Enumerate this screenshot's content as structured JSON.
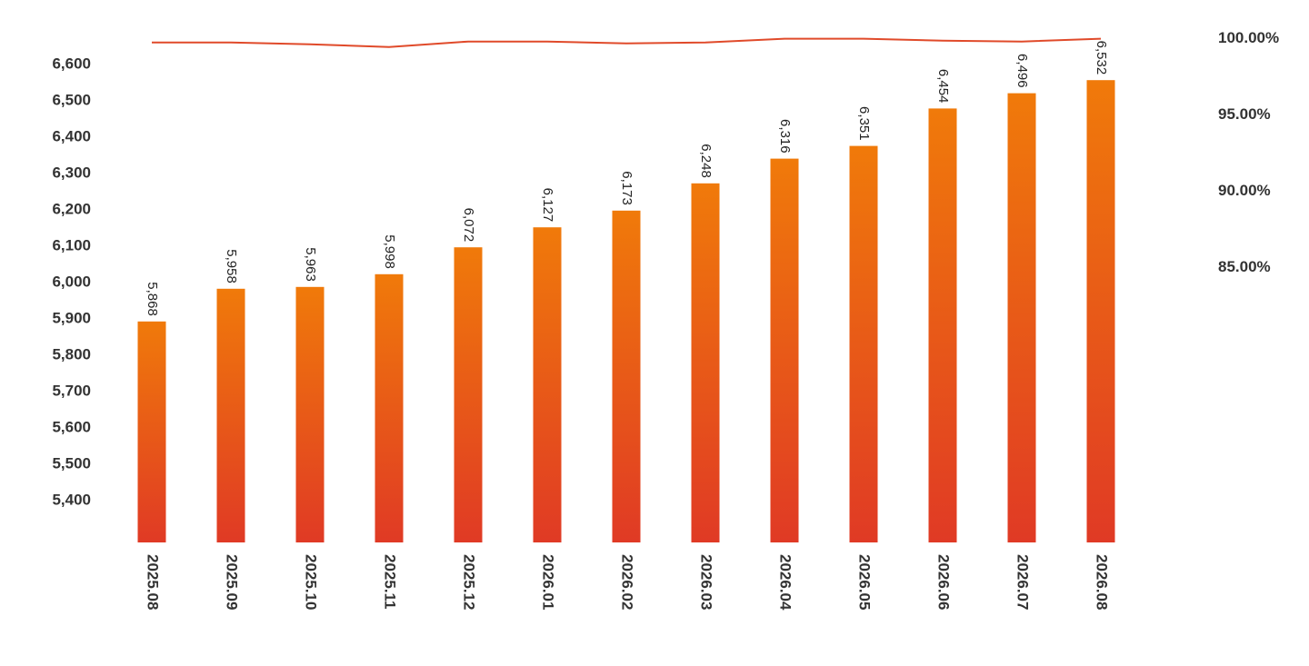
{
  "chart_data": {
    "type": "bar_line",
    "categories": [
      "2025.08",
      "2025.09",
      "2025.10",
      "2025.11",
      "2025.12",
      "2026.01",
      "2026.02",
      "2026.03",
      "2026.04",
      "2026.05",
      "2026.06",
      "2026.07",
      "2026.08"
    ],
    "series": [
      {
        "type": "bar",
        "color": [
          "#f07a0a",
          "#e03a25"
        ],
        "values": [
          5868,
          5958,
          5963,
          5998,
          6072,
          6127,
          6173,
          6248,
          6316,
          6351,
          6454,
          6496,
          6532
        ],
        "value_labels": [
          "5,868",
          "5,958",
          "5,963",
          "5,998",
          "6,072",
          "6,127",
          "6,173",
          "6,248",
          "6,316",
          "6,351",
          "6,454",
          "6,496",
          "6,532"
        ]
      },
      {
        "type": "line",
        "axis": "y2",
        "color": "#e04a2a",
        "values": [
          99.76,
          99.76,
          99.64,
          99.46,
          99.82,
          99.82,
          99.7,
          99.76,
          100.0,
          100.0,
          99.88,
          99.82,
          100.0
        ]
      }
    ],
    "ylim": [
      5260,
      6650
    ],
    "yticks": [
      {
        "value": 5400,
        "label": "5,400"
      },
      {
        "value": 5500,
        "label": "5,500"
      },
      {
        "value": 5600,
        "label": "5,600"
      },
      {
        "value": 5700,
        "label": "5,700"
      },
      {
        "value": 5800,
        "label": "5,800"
      },
      {
        "value": 5900,
        "label": "5,900"
      },
      {
        "value": 6000,
        "label": "6,000"
      },
      {
        "value": 6100,
        "label": "6,100"
      },
      {
        "value": 6200,
        "label": "6,200"
      },
      {
        "value": 6300,
        "label": "6,300"
      },
      {
        "value": 6400,
        "label": "6,400"
      },
      {
        "value": 6500,
        "label": "6,500"
      },
      {
        "value": 6600,
        "label": "6,600"
      }
    ],
    "y2lim": [
      67,
      100.1
    ],
    "y2ticks": [
      {
        "value": 85,
        "label": "85.00%"
      },
      {
        "value": 90,
        "label": "90.00%"
      },
      {
        "value": 95,
        "label": "95.00%"
      },
      {
        "value": 100,
        "label": "100.00%"
      }
    ]
  }
}
